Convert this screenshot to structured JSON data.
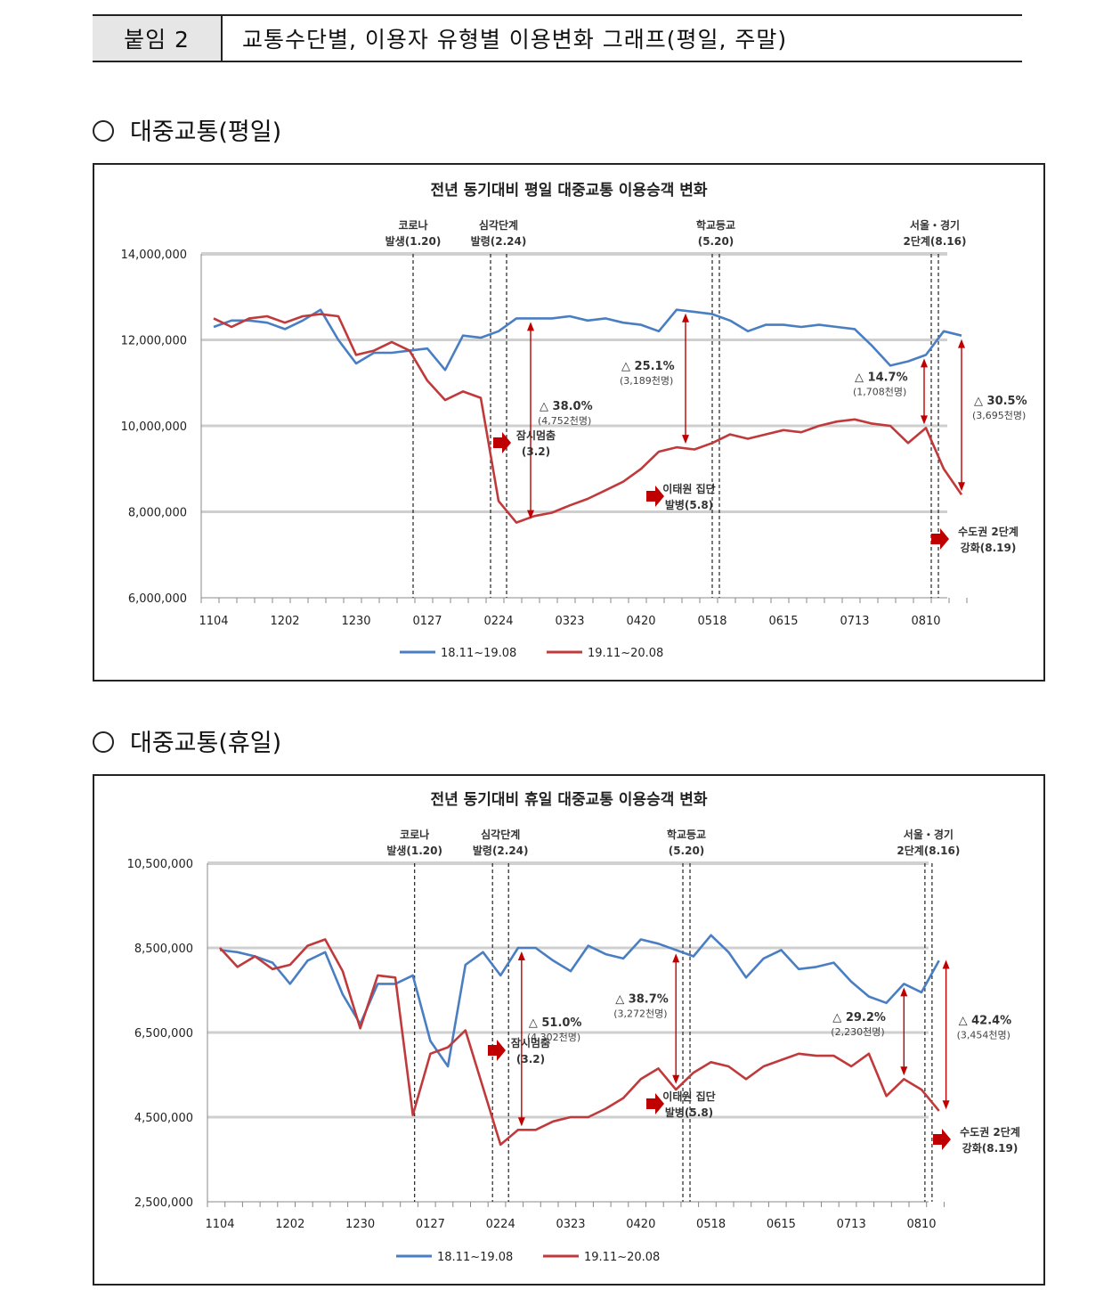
{
  "header": {
    "tag": "붙임 2",
    "title": "교통수단별, 이용자 유형별 이용변화 그래프(평일, 주말)"
  },
  "sections": [
    {
      "label": "대중교통(평일)"
    },
    {
      "label": "대중교통(휴일)"
    }
  ],
  "colors": {
    "series1": "#4a7ec2",
    "series2": "#c0393b",
    "axis": "#888888",
    "arrow": "#c00000"
  },
  "chart_data": [
    {
      "type": "line",
      "title": "전년 동기대비 평일 대중교통 이용승객 변화",
      "ylim": [
        6000000,
        14000000
      ],
      "yticks": [
        "6,000,000",
        "8,000,000",
        "10,000,000",
        "12,000,000",
        "14,000,000"
      ],
      "ytick_values": [
        6000000,
        8000000,
        10000000,
        12000000,
        14000000
      ],
      "xtick_labels": [
        "1104",
        "1202",
        "1230",
        "0127",
        "0224",
        "0323",
        "0420",
        "0518",
        "0615",
        "0713",
        "0810"
      ],
      "xtick_index": [
        0,
        4,
        8,
        12,
        16,
        20,
        24,
        28,
        32,
        36,
        40
      ],
      "series": [
        {
          "name": "18.11~19.08",
          "values": [
            12300000,
            12450000,
            12450000,
            12400000,
            12250000,
            12450000,
            12700000,
            12000000,
            11450000,
            11700000,
            11700000,
            11750000,
            11800000,
            11300000,
            12100000,
            12050000,
            12200000,
            12500000,
            12500000,
            12500000,
            12550000,
            12450000,
            12500000,
            12400000,
            12350000,
            12200000,
            12700000,
            12650000,
            12600000,
            12450000,
            12200000,
            12350000,
            12350000,
            12300000,
            12350000,
            12300000,
            12250000,
            11850000,
            11400000,
            11500000,
            11650000,
            12200000,
            12100000
          ]
        },
        {
          "name": "19.11~20.08",
          "values": [
            12500000,
            12300000,
            12500000,
            12550000,
            12400000,
            12550000,
            12600000,
            12550000,
            11650000,
            11750000,
            11950000,
            11750000,
            11050000,
            10600000,
            10800000,
            10650000,
            8250000,
            7750000,
            7900000,
            7980000,
            8150000,
            8300000,
            8500000,
            8700000,
            9000000,
            9400000,
            9500000,
            9450000,
            9600000,
            9800000,
            9700000,
            9800000,
            9900000,
            9850000,
            10000000,
            10100000,
            10150000,
            10050000,
            10000000,
            9600000,
            9950000,
            9000000,
            8400000
          ]
        }
      ],
      "events": [
        {
          "label": [
            "코로나",
            "발생(1.20)"
          ],
          "x": 11.2,
          "double": false
        },
        {
          "label": [
            "심각단계",
            "발령(2.24)"
          ],
          "x": 16.0,
          "double": true
        },
        {
          "label": [
            "학교등교",
            "(5.20)"
          ],
          "x": 28.2,
          "double": true
        },
        {
          "label": [
            "서울・경기",
            "2단계(8.16)"
          ],
          "x": 40.5,
          "double": true
        }
      ],
      "gaps": [
        {
          "pct": "△ 38.0%",
          "abs": "(4,752천명)",
          "x": 17.8,
          "y_top": 12500000,
          "y_bottom": 7750000
        },
        {
          "pct": "△ 25.1%",
          "abs": "(3,189천명)",
          "x": 26.5,
          "y_top": 12700000,
          "y_bottom": 9500000
        },
        {
          "pct": "△ 14.7%",
          "abs": "(1,708천명)",
          "x": 39.9,
          "y_top": 11650000,
          "y_bottom": 9950000
        },
        {
          "pct": "△ 30.5%",
          "abs": "(3,695천명)",
          "x": 42.0,
          "y_top": 12100000,
          "y_bottom": 8400000
        }
      ],
      "callouts": [
        {
          "text": [
            "잠시멈춤",
            "(3.2)"
          ]
        },
        {
          "text": [
            "이태원 집단",
            "발병(5.8)"
          ]
        },
        {
          "text": [
            "수도권 2단계",
            "강화(8.19)"
          ]
        }
      ]
    },
    {
      "type": "line",
      "title": "전년 동기대비 휴일 대중교통 이용승객 변화",
      "ylim": [
        2500000,
        10500000
      ],
      "yticks": [
        "2,500,000",
        "4,500,000",
        "6,500,000",
        "8,500,000",
        "10,500,000"
      ],
      "ytick_values": [
        2500000,
        4500000,
        6500000,
        8500000,
        10500000
      ],
      "xtick_labels": [
        "1104",
        "1202",
        "1230",
        "0127",
        "0224",
        "0323",
        "0420",
        "0518",
        "0615",
        "0713",
        "0810"
      ],
      "xtick_index": [
        0,
        4,
        8,
        12,
        16,
        20,
        24,
        28,
        32,
        36,
        40
      ],
      "series": [
        {
          "name": "18.11~19.08",
          "values": [
            8450000,
            8400000,
            8300000,
            8150000,
            7650000,
            8200000,
            8400000,
            7400000,
            6700000,
            7650000,
            7650000,
            7850000,
            6300000,
            5700000,
            8100000,
            8400000,
            7850000,
            8500000,
            8500000,
            8200000,
            7950000,
            8550000,
            8350000,
            8250000,
            8700000,
            8600000,
            8450000,
            8300000,
            8800000,
            8400000,
            7800000,
            8250000,
            8450000,
            8000000,
            8050000,
            8150000,
            7700000,
            7350000,
            7200000,
            7650000,
            7450000,
            8200000
          ]
        },
        {
          "name": "19.11~20.08",
          "values": [
            8500000,
            8050000,
            8300000,
            8000000,
            8100000,
            8550000,
            8700000,
            7950000,
            6600000,
            7850000,
            7800000,
            4550000,
            6000000,
            6150000,
            6550000,
            5200000,
            3850000,
            4200000,
            4200000,
            4400000,
            4500000,
            4500000,
            4700000,
            4950000,
            5400000,
            5650000,
            5150000,
            5550000,
            5800000,
            5700000,
            5400000,
            5700000,
            5850000,
            6000000,
            5950000,
            5950000,
            5700000,
            6000000,
            5000000,
            5400000,
            5150000,
            4650000
          ]
        }
      ],
      "events": [
        {
          "label": [
            "코로나",
            "발생(1.20)"
          ],
          "x": 11.1,
          "double": false
        },
        {
          "label": [
            "심각단계",
            "발령(2.24)"
          ],
          "x": 16.0,
          "double": true
        },
        {
          "label": [
            "학교등교",
            "(5.20)"
          ],
          "x": 26.6,
          "double": true
        },
        {
          "label": [
            "서울・경기",
            "2단계(8.16)"
          ],
          "x": 40.4,
          "double": true
        }
      ],
      "gaps": [
        {
          "pct": "△ 51.0%",
          "abs": "(4,302천명)",
          "x": 17.2,
          "y_top": 8500000,
          "y_bottom": 4200000
        },
        {
          "pct": "△ 38.7%",
          "abs": "(3,272천명)",
          "x": 26.0,
          "y_top": 8450000,
          "y_bottom": 5200000
        },
        {
          "pct": "△ 29.2%",
          "abs": "(2,230천명)",
          "x": 39.0,
          "y_top": 7650000,
          "y_bottom": 5400000
        },
        {
          "pct": "△ 42.4%",
          "abs": "(3,454천명)",
          "x": 41.4,
          "y_top": 8300000,
          "y_bottom": 4600000
        }
      ],
      "callouts": [
        {
          "text": [
            "잠시멈춤",
            "(3.2)"
          ]
        },
        {
          "text": [
            "이태원 집단",
            "발병(5.8)"
          ]
        },
        {
          "text": [
            "수도권 2단계",
            "강화(8.19)"
          ]
        }
      ]
    }
  ]
}
